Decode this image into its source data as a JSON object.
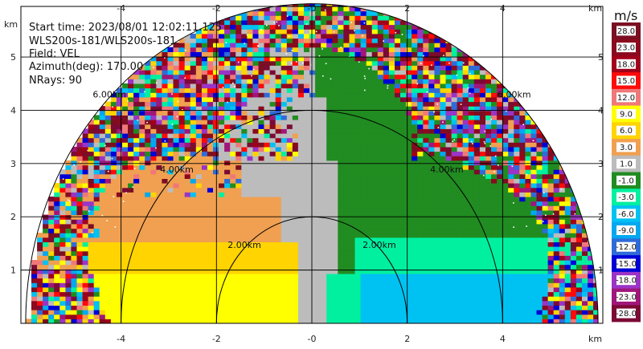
{
  "info": {
    "start_time": "Start time: 2023/08/01 12:02:11.125",
    "instrument": "WLS200s-181/WLS200s-181",
    "field": "Field: VEL",
    "azimuth": "Azimuth(deg): 170.00",
    "nrays": "NRays: 90"
  },
  "chart_data": {
    "type": "heatmap",
    "projection": "RHI half-disc (elevation 0-180 deg)",
    "x_unit": "km",
    "y_unit": "km",
    "xlim": [
      -6.1,
      6.1
    ],
    "ylim": [
      0,
      5.95
    ],
    "x_ticks": [
      "-4",
      "-2",
      "-0",
      "2",
      "4"
    ],
    "y_ticks": [
      "1",
      "2",
      "3",
      "4",
      "5"
    ],
    "ring_labels": [
      "2.00km",
      "4.00km",
      "6.00km"
    ],
    "colorbar_unit": "m/s",
    "colorbar": [
      {
        "label": "-28.0",
        "color": "#7b0a35"
      },
      {
        "label": "-23.0",
        "color": "#a0167a"
      },
      {
        "label": "-18.0",
        "color": "#9b34c6"
      },
      {
        "label": "-15.0",
        "color": "#0000d6"
      },
      {
        "label": "-12.0",
        "color": "#2f6bd8"
      },
      {
        "label": "-9.0",
        "color": "#00a8f0"
      },
      {
        "label": "-6.0",
        "color": "#00c2f2"
      },
      {
        "label": "-3.0",
        "color": "#00f0a0"
      },
      {
        "label": "-1.0",
        "color": "#218c21"
      },
      {
        "label": "1.0",
        "color": "#bcbcbc"
      },
      {
        "label": "3.0",
        "color": "#f0a050"
      },
      {
        "label": "6.0",
        "color": "#ffd400"
      },
      {
        "label": "9.0",
        "color": "#ffff00"
      },
      {
        "label": "12.0",
        "color": "#f07878"
      },
      {
        "label": "15.0",
        "color": "#ff0a0a"
      },
      {
        "label": "18.0",
        "color": "#a0001a"
      },
      {
        "label": "23.0",
        "color": "#8a0a1e"
      },
      {
        "label": "28.0",
        "color": "#7a0f22"
      }
    ],
    "regions": [
      {
        "name": "near-left",
        "velocity": "3.0 to 9.0 (orange/yellow, receding)"
      },
      {
        "name": "near-right",
        "velocity": "-3.0 to -9.0 (green/cyan, approaching)"
      },
      {
        "name": "vertical",
        "velocity": "-1.0 to 1.0 (grey)"
      },
      {
        "name": "outer",
        "velocity": "noise, mixed"
      }
    ]
  }
}
